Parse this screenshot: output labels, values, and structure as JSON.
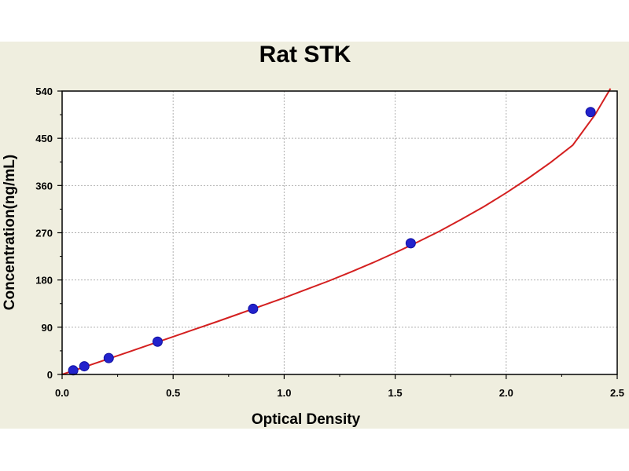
{
  "chart_data": {
    "type": "scatter",
    "title": "Rat STK",
    "xlabel": "Optical Density",
    "ylabel": "Concentration(ng/mL)",
    "xlim": [
      0,
      2.5
    ],
    "ylim": [
      0,
      540
    ],
    "xticks": [
      "0.0",
      "0.5",
      "1.0",
      "1.5",
      "2.0",
      "2.5"
    ],
    "yticks": [
      "0",
      "90",
      "180",
      "270",
      "360",
      "450",
      "540"
    ],
    "grid": true,
    "colors": {
      "points": "#2222cc",
      "curve": "#d42020",
      "grid": "#b0b0b0",
      "panel": "#efeedf"
    },
    "series": [
      {
        "type": "scatter",
        "x": [
          0.05,
          0.1,
          0.21,
          0.43,
          0.86,
          1.57,
          2.38
        ],
        "y": [
          7.8,
          15.6,
          31.2,
          62.5,
          125,
          250,
          500
        ]
      },
      {
        "type": "line",
        "x": [
          0.0,
          0.1,
          0.2,
          0.3,
          0.4,
          0.5,
          0.6,
          0.7,
          0.8,
          0.9,
          1.0,
          1.1,
          1.2,
          1.3,
          1.4,
          1.5,
          1.6,
          1.7,
          1.8,
          1.9,
          2.0,
          2.1,
          2.2,
          2.3,
          2.4,
          2.47
        ],
        "y": [
          0,
          14,
          28.5,
          43,
          57.5,
          72,
          86.5,
          101,
          116,
          131,
          146,
          162,
          178,
          195,
          213,
          232,
          252,
          273,
          296,
          320,
          346,
          374,
          404,
          437,
          495,
          545
        ]
      }
    ]
  }
}
